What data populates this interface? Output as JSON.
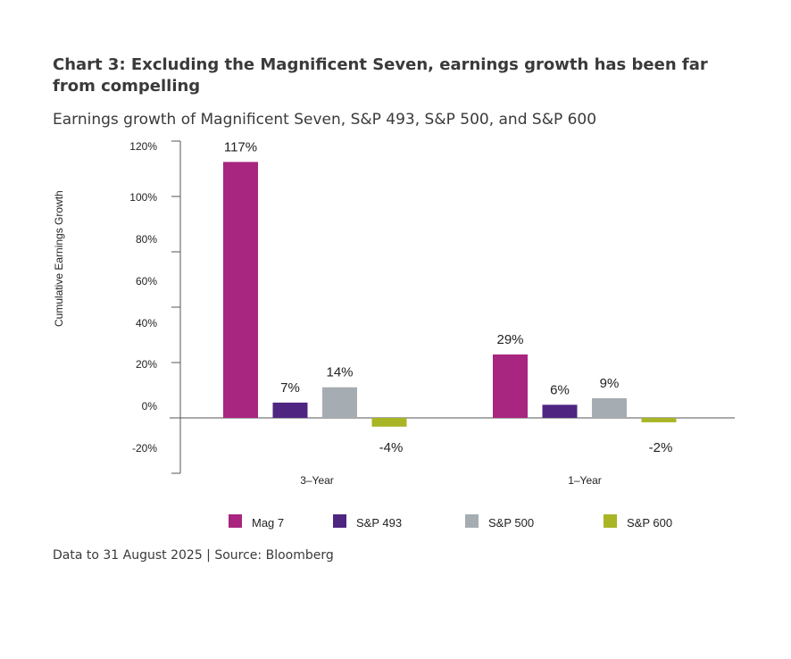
{
  "title": "Chart 3: Excluding the Magnificent Seven, earnings growth has been far from compelling",
  "subtitle": "Earnings growth of Magnificent Seven, S&P 493, S&P 500, and S&P 600",
  "footer": "Data to 31 August 2025 |  Source: Bloomberg",
  "chart_data": {
    "type": "bar",
    "ylabel": "Cumulative Earnings Growth",
    "xlabel": "",
    "categories": [
      "3–Year",
      "1–Year"
    ],
    "yticks": [
      "120%",
      "100%",
      "80%",
      "60%",
      "40%",
      "20%",
      "0%",
      "-20%"
    ],
    "ylim": [
      -20,
      120
    ],
    "grid": false,
    "legend_position": "bottom",
    "series": [
      {
        "name": "Mag 7",
        "color": "#a8267f",
        "values": [
          117,
          29
        ],
        "labels": [
          "117%",
          "29%"
        ]
      },
      {
        "name": "S&P 493",
        "color": "#4f2582",
        "values": [
          7,
          6
        ],
        "labels": [
          "7%",
          "6%"
        ]
      },
      {
        "name": "S&P 500",
        "color": "#a5adb2",
        "values": [
          14,
          9
        ],
        "labels": [
          "14%",
          "9%"
        ]
      },
      {
        "name": "S&P 600",
        "color": "#a8b525",
        "values": [
          -4,
          -2
        ],
        "labels": [
          "-4%",
          "-2%"
        ]
      }
    ]
  }
}
